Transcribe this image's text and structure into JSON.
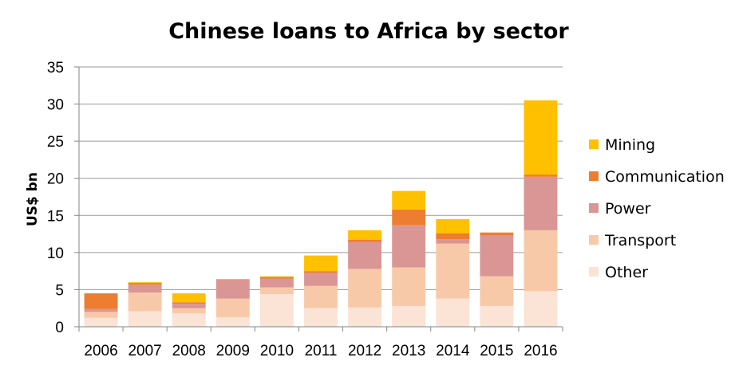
{
  "chart_data": {
    "type": "bar",
    "stacked": true,
    "title": "Chinese loans to Africa by sector",
    "xlabel": "",
    "ylabel": "US$ bn",
    "ylim": [
      0,
      35
    ],
    "yticks": [
      0,
      5,
      10,
      15,
      20,
      25,
      30,
      35
    ],
    "grid": true,
    "legend_position": "right",
    "categories": [
      "2006",
      "2007",
      "2008",
      "2009",
      "2010",
      "2011",
      "2012",
      "2013",
      "2014",
      "2015",
      "2016"
    ],
    "series": [
      {
        "name": "Other",
        "color": "#fbe3d5",
        "values": [
          1.2,
          2.1,
          1.8,
          1.3,
          4.4,
          2.5,
          2.6,
          2.8,
          3.8,
          2.8,
          4.8
        ]
      },
      {
        "name": "Transport",
        "color": "#f8c9a8",
        "values": [
          0.8,
          2.5,
          0.7,
          2.5,
          0.9,
          3.0,
          5.2,
          5.2,
          7.4,
          4.0,
          8.2
        ]
      },
      {
        "name": "Power",
        "color": "#d99694",
        "values": [
          0.4,
          1.1,
          0.6,
          2.5,
          1.2,
          1.8,
          3.6,
          5.7,
          0.6,
          5.5,
          7.2
        ]
      },
      {
        "name": "Communication",
        "color": "#ed7d31",
        "values": [
          2.1,
          0.2,
          0.2,
          0.1,
          0.2,
          0.2,
          0.3,
          2.1,
          0.8,
          0.4,
          0.3
        ]
      },
      {
        "name": "Mining",
        "color": "#ffc000",
        "values": [
          0.0,
          0.1,
          1.2,
          0.0,
          0.1,
          2.1,
          1.3,
          2.5,
          1.9,
          0.0,
          10.0
        ]
      }
    ]
  }
}
